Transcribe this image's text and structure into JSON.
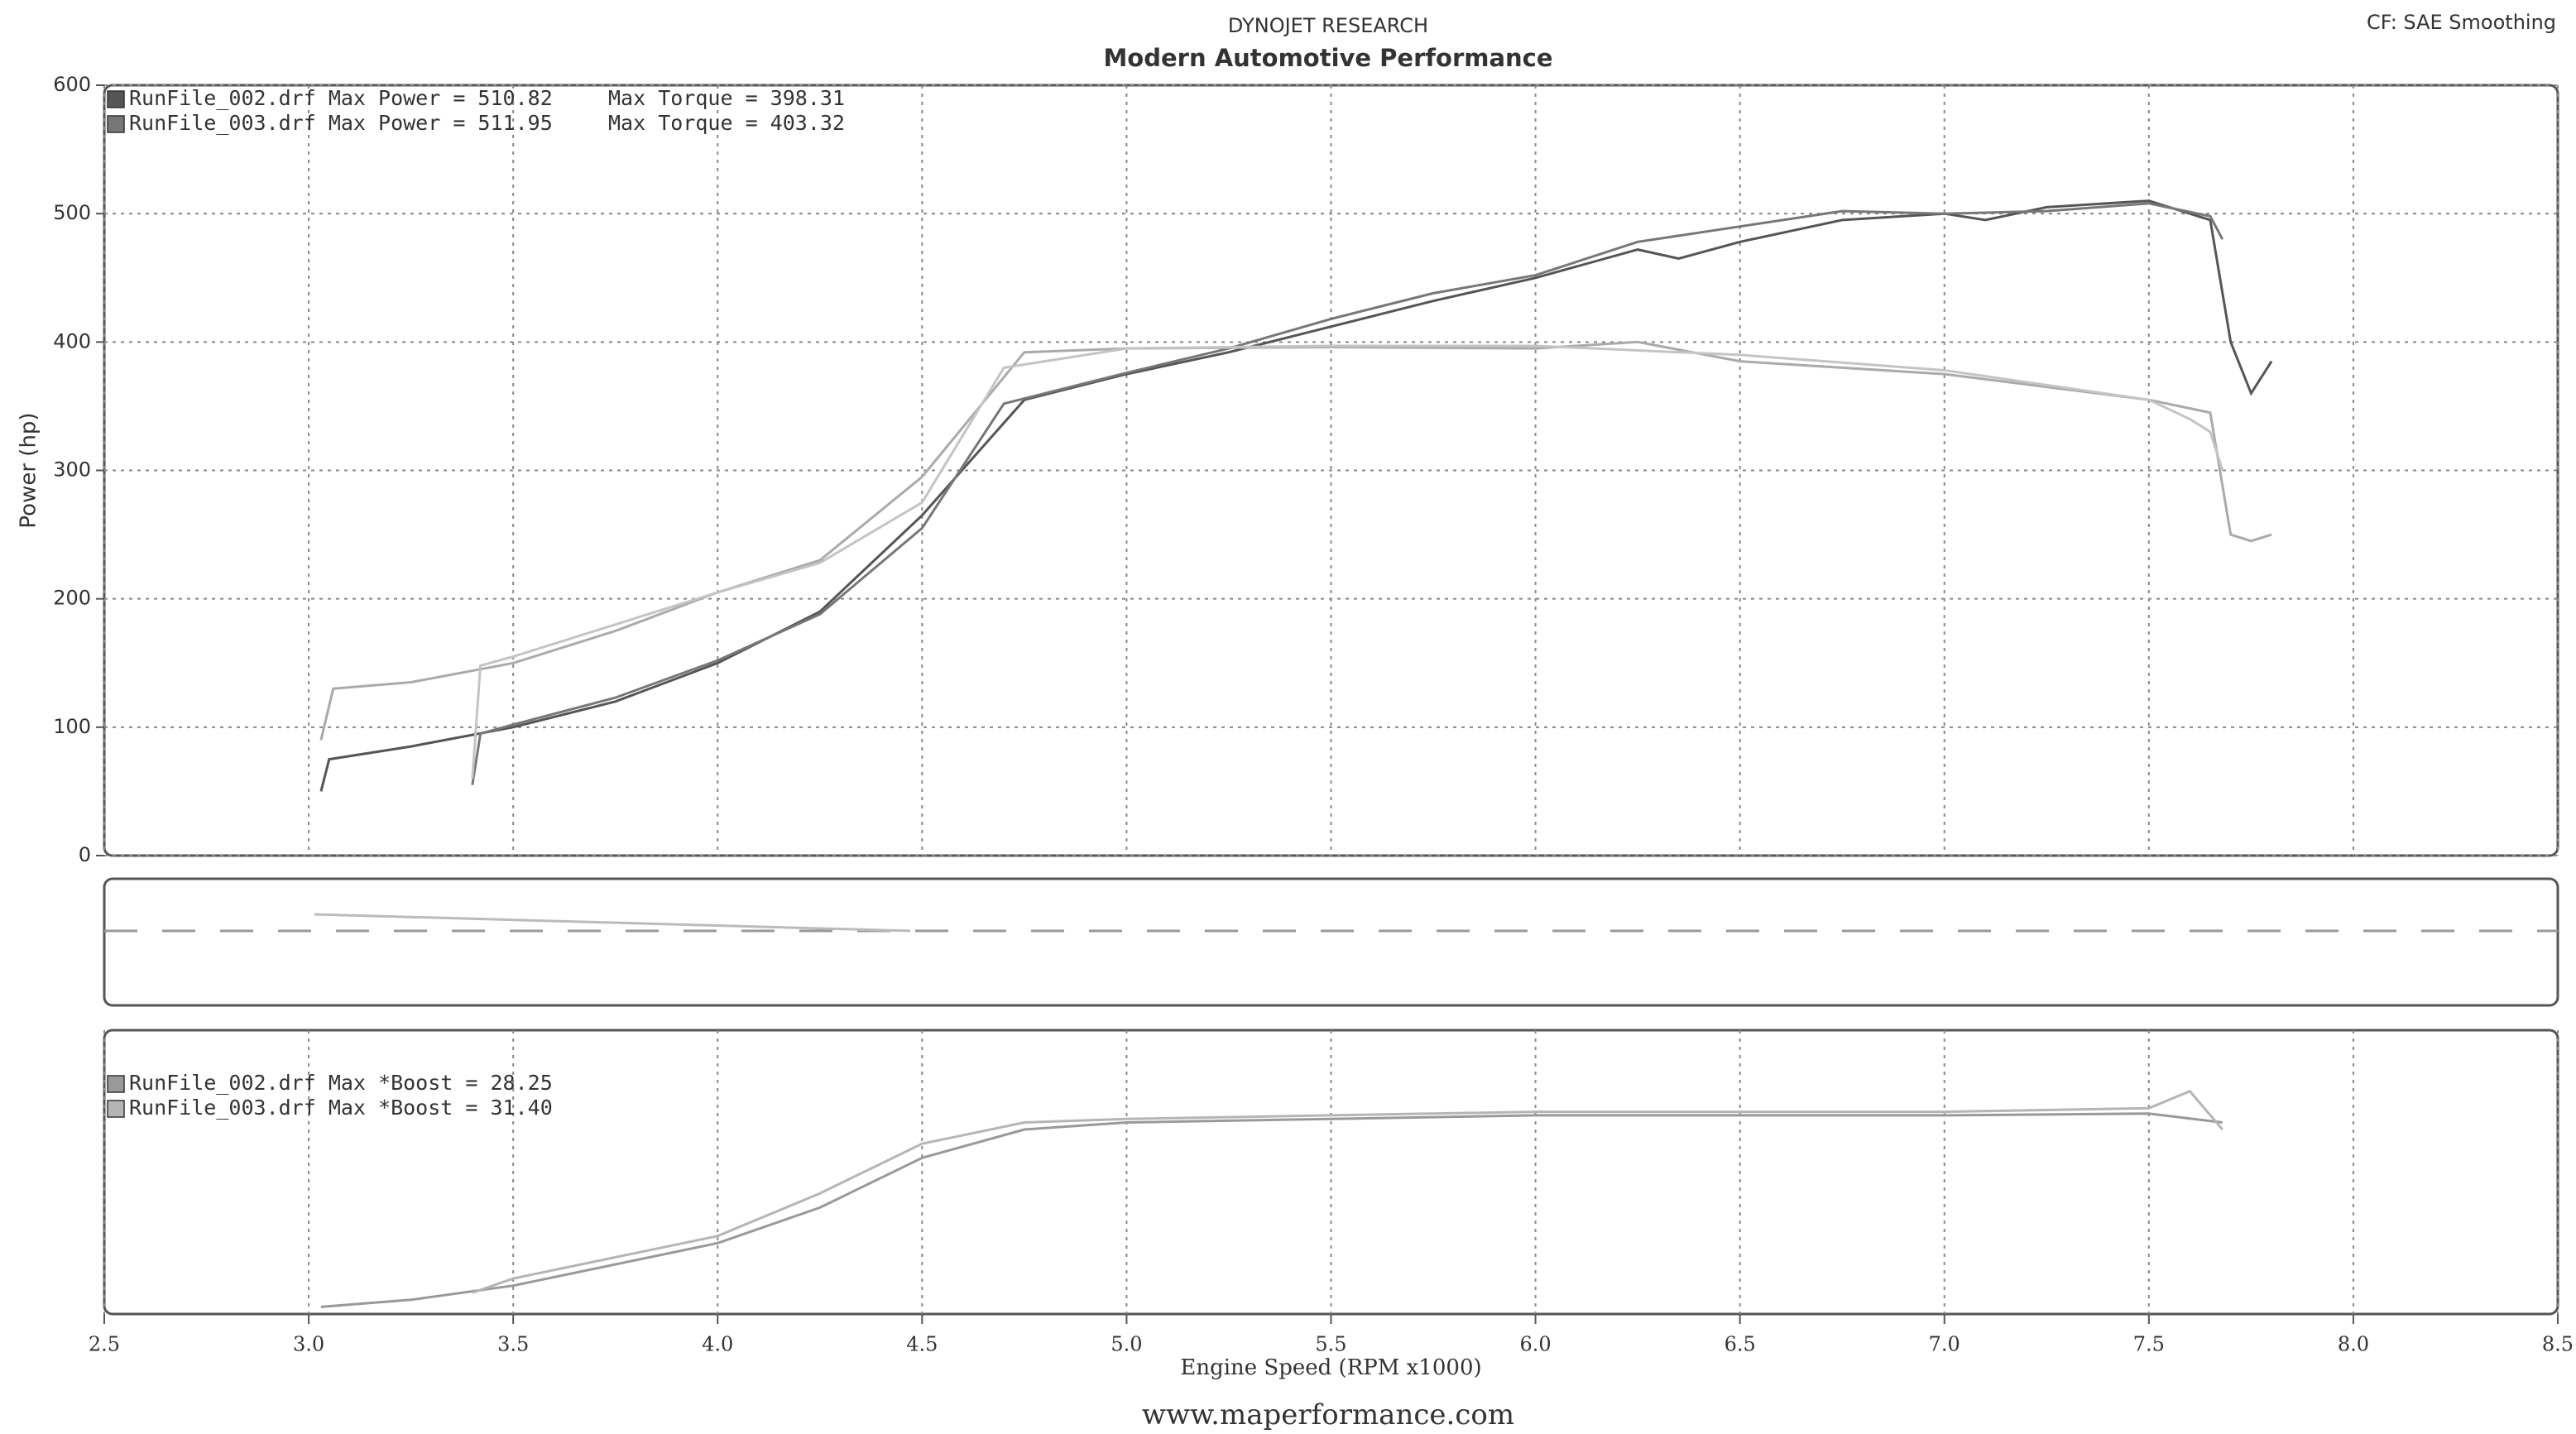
{
  "header": {
    "title": "DYNOJET RESEARCH",
    "subtitle": "Modern Automotive Performance",
    "corner": "CF: SAE  Smoothing"
  },
  "footer": "www.maperformance.com",
  "chart_data": [
    {
      "type": "line",
      "ylabel": "Power (hp)",
      "xlim": [
        2.5,
        8.5
      ],
      "xticks": [
        2.5,
        3,
        3.5,
        4,
        4.5,
        5,
        5.5,
        6,
        6.5,
        7,
        7.5,
        8,
        8.5
      ],
      "ylim": [
        0,
        600
      ],
      "yticks": [
        0,
        100,
        200,
        300,
        400,
        500,
        600
      ],
      "grid": true,
      "series": [
        {
          "name": "RunFile_002.drf Max Power = 510.82",
          "color": "#555555",
          "x": [
            3.03,
            3.05,
            3.25,
            3.5,
            3.75,
            4.0,
            4.25,
            4.5,
            4.75,
            5.0,
            5.25,
            5.5,
            5.75,
            6.0,
            6.25,
            6.35,
            6.5,
            6.75,
            7.0,
            7.1,
            7.25,
            7.5,
            7.6,
            7.65,
            7.7,
            7.75,
            7.8
          ],
          "values": [
            50,
            75,
            85,
            100,
            120,
            150,
            190,
            265,
            355,
            375,
            392,
            412,
            432,
            450,
            472,
            465,
            478,
            495,
            500,
            495,
            505,
            510,
            500,
            495,
            400,
            360,
            385
          ]
        },
        {
          "name": "RunFile_003.drf Max Power = 511.95",
          "color": "#777777",
          "x": [
            3.4,
            3.42,
            3.5,
            3.75,
            4.0,
            4.25,
            4.5,
            4.7,
            5.0,
            5.25,
            5.5,
            5.75,
            6.0,
            6.25,
            6.5,
            6.75,
            7.0,
            7.25,
            7.5,
            7.65,
            7.68
          ],
          "values": [
            55,
            95,
            102,
            123,
            152,
            188,
            255,
            352,
            376,
            395,
            418,
            438,
            452,
            478,
            490,
            502,
            500,
            502,
            508,
            498,
            480
          ]
        },
        {
          "name": "Max Torque = 398.31",
          "color": "#aaaaaa",
          "x": [
            3.03,
            3.06,
            3.25,
            3.5,
            3.75,
            4.0,
            4.25,
            4.5,
            4.75,
            5.0,
            5.5,
            6.0,
            6.25,
            6.5,
            6.75,
            7.0,
            7.25,
            7.5,
            7.65,
            7.7,
            7.75,
            7.8
          ],
          "values": [
            90,
            130,
            135,
            150,
            175,
            205,
            230,
            295,
            392,
            395,
            396,
            395,
            400,
            385,
            380,
            375,
            365,
            355,
            345,
            250,
            245,
            250
          ]
        },
        {
          "name": "Max Torque = 403.32",
          "color": "#c4c4c4",
          "x": [
            3.4,
            3.42,
            3.5,
            3.75,
            4.0,
            4.25,
            4.5,
            4.7,
            5.0,
            5.5,
            6.0,
            6.5,
            7.0,
            7.5,
            7.6,
            7.65,
            7.68
          ],
          "values": [
            60,
            148,
            155,
            180,
            205,
            228,
            275,
            380,
            395,
            397,
            397,
            390,
            378,
            355,
            340,
            330,
            300
          ]
        }
      ]
    },
    {
      "type": "line",
      "xlabel": "Engine Speed (RPM x1000)",
      "xlim": [
        2.5,
        8.5
      ],
      "xticks": [
        2.5,
        {
          "value": 3,
          "label": "3.0"
        },
        3.5,
        {
          "value": 4,
          "label": "4.0"
        },
        4.5,
        {
          "value": 5,
          "label": "5.0"
        },
        5.5,
        {
          "value": 6,
          "label": "6.0"
        },
        6.5,
        {
          "value": 7,
          "label": "7.0"
        },
        7.5,
        {
          "value": 8,
          "label": "8.0"
        },
        8.5
      ],
      "ylim": [
        0,
        40
      ],
      "grid": true,
      "series": [
        {
          "name": "RunFile_002.drf Max *Boost = 28.25",
          "color": "#999999",
          "x": [
            3.03,
            3.25,
            3.5,
            3.75,
            4.0,
            4.25,
            4.5,
            4.75,
            5.0,
            5.5,
            6.0,
            6.5,
            7.0,
            7.5,
            7.68
          ],
          "values": [
            1,
            2,
            4,
            7,
            10,
            15,
            22,
            26,
            27,
            27.5,
            28,
            28,
            28,
            28.25,
            27
          ]
        },
        {
          "name": "RunFile_003.drf Max *Boost = 31.40",
          "color": "#b5b5b5",
          "x": [
            3.4,
            3.5,
            3.75,
            4.0,
            4.25,
            4.5,
            4.75,
            5.0,
            5.5,
            6.0,
            6.5,
            7.0,
            7.5,
            7.6,
            7.68
          ],
          "values": [
            3,
            5,
            8,
            11,
            17,
            24,
            27,
            27.5,
            28,
            28.5,
            28.5,
            28.5,
            29,
            31.4,
            26
          ]
        }
      ]
    }
  ]
}
